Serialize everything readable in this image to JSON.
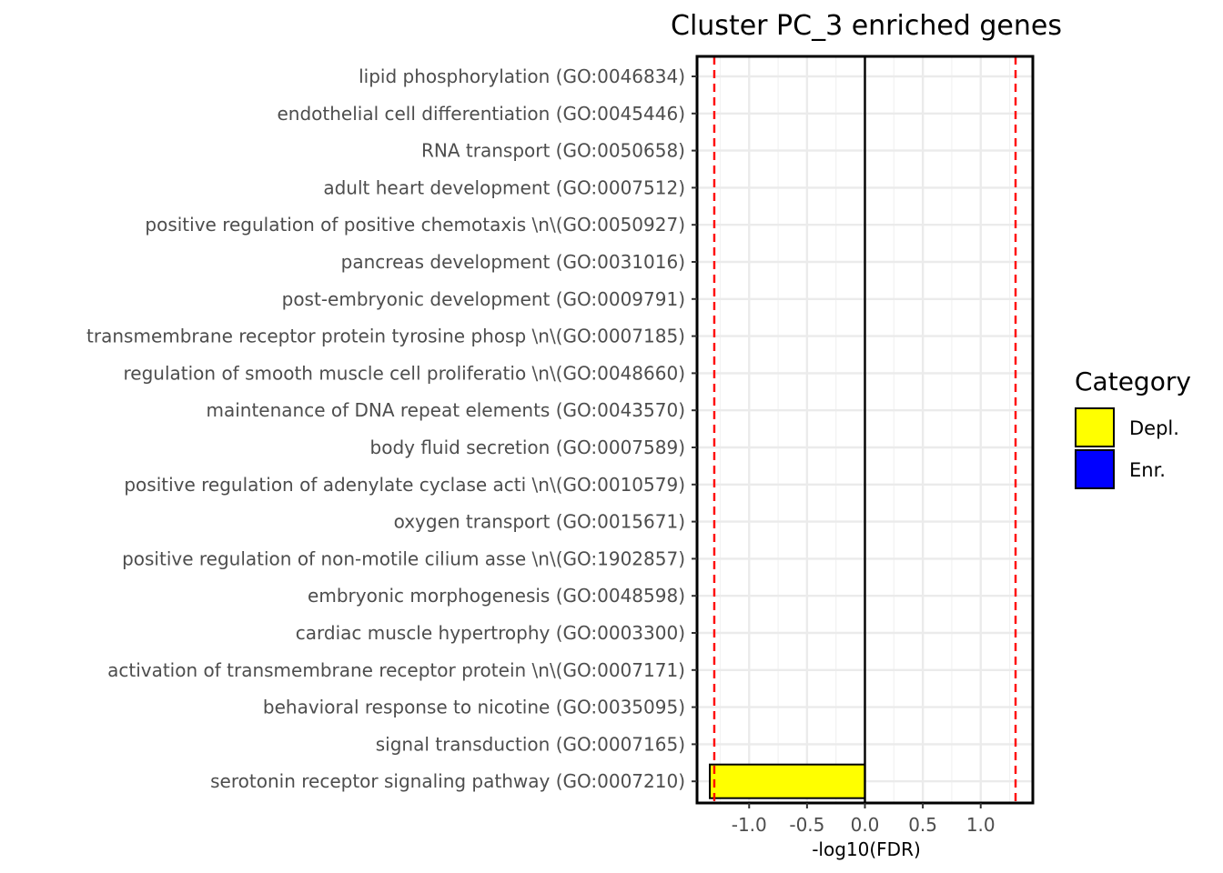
{
  "chart_data": {
    "type": "bar",
    "orientation": "horizontal",
    "title": "Cluster PC_3 enriched genes",
    "xlabel": "-log10(FDR)",
    "ylabel": "",
    "xlim": [
      -1.45,
      1.45
    ],
    "xticks": [
      -1.0,
      -0.5,
      0.0,
      0.5,
      1.0
    ],
    "xtick_labels": [
      "-1.0",
      "-0.5",
      "0.0",
      "0.5",
      "1.0"
    ],
    "reference_lines": [
      -1.301,
      1.301
    ],
    "zero_line": 0,
    "grid": true,
    "categories": [
      "lipid phosphorylation (GO:0046834)",
      "endothelial cell differentiation (GO:0045446)",
      "RNA transport (GO:0050658)",
      "adult heart development (GO:0007512)",
      "positive regulation of positive chemotaxis  \\n\\(GO:0050927)",
      "pancreas development (GO:0031016)",
      "post-embryonic development (GO:0009791)",
      "transmembrane receptor protein tyrosine phosp \\n\\(GO:0007185)",
      "regulation of smooth muscle cell proliferatio \\n\\(GO:0048660)",
      "maintenance of DNA repeat elements (GO:0043570)",
      "body fluid secretion (GO:0007589)",
      "positive regulation of adenylate cyclase acti \\n\\(GO:0010579)",
      "oxygen transport (GO:0015671)",
      "positive regulation of non-motile cilium asse \\n\\(GO:1902857)",
      "embryonic morphogenesis (GO:0048598)",
      "cardiac muscle hypertrophy (GO:0003300)",
      "activation of transmembrane receptor protein  \\n\\(GO:0007171)",
      "behavioral response to nicotine (GO:0035095)",
      "signal transduction (GO:0007165)",
      "serotonin receptor signaling pathway (GO:0007210)"
    ],
    "values": [
      0,
      0,
      0,
      0,
      0,
      0,
      0,
      0,
      0,
      0,
      0,
      0,
      0,
      0,
      0,
      0,
      0,
      0,
      0,
      -1.34
    ],
    "bar_categories": [
      "Depl.",
      "Depl.",
      "Depl.",
      "Depl.",
      "Depl.",
      "Depl.",
      "Depl.",
      "Depl.",
      "Depl.",
      "Depl.",
      "Depl.",
      "Depl.",
      "Depl.",
      "Depl.",
      "Depl.",
      "Depl.",
      "Depl.",
      "Depl.",
      "Depl.",
      "Depl."
    ],
    "legend": {
      "title": "Category",
      "position": "right",
      "entries": [
        {
          "label": "Depl.",
          "color": "#ffff00"
        },
        {
          "label": "Enr.",
          "color": "#0000ff"
        }
      ]
    },
    "colors": {
      "reference_line": "#ff0000",
      "grid": "#ebebeb",
      "bar_outline": "#000000"
    }
  }
}
